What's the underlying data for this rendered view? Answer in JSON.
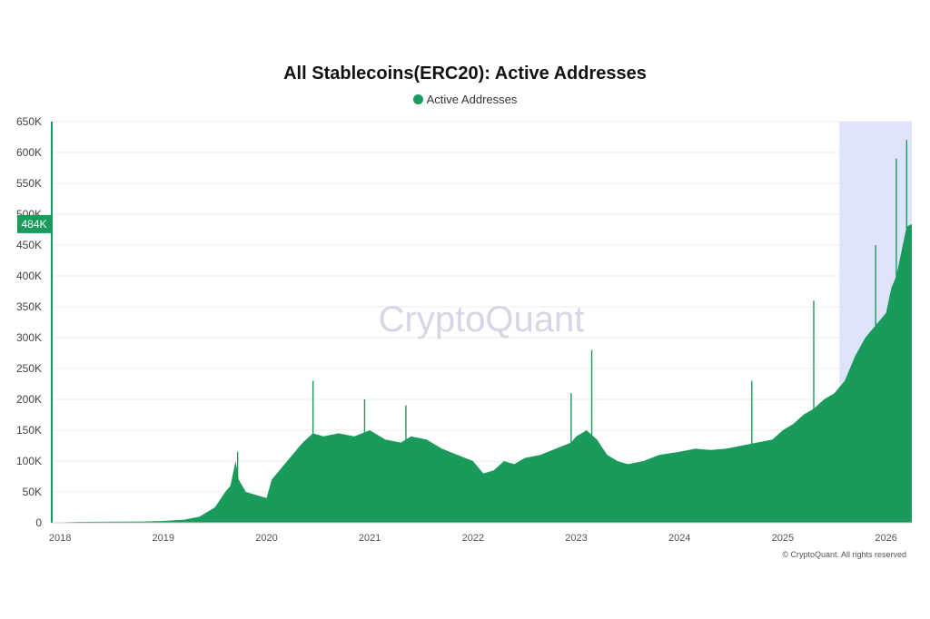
{
  "colors": {
    "series": "#1a9b5c",
    "highlight_band": "#dfe4fb",
    "badge": "#1a9b5c",
    "grid": "#eeeeee"
  },
  "watermark": "CryptoQuant",
  "copyright": "© CryptoQuant. All rights reserved",
  "current_value_badge": "484K",
  "chart_data": {
    "type": "area",
    "title": "All Stablecoins(ERC20): Active Addresses",
    "legend": [
      "Active Addresses"
    ],
    "legend_position": "top-center",
    "xlabel": "",
    "ylabel": "",
    "grid": true,
    "ylim": [
      0,
      650000
    ],
    "xlim": [
      2017.92,
      2026.25
    ],
    "y_ticks": [
      "0",
      "50K",
      "100K",
      "150K",
      "200K",
      "250K",
      "300K",
      "350K",
      "400K",
      "450K",
      "500K",
      "550K",
      "600K",
      "650K"
    ],
    "x_ticks": [
      "2018",
      "2019",
      "2020",
      "2021",
      "2022",
      "2023",
      "2024",
      "2025",
      "2026"
    ],
    "highlight_range": [
      2025.55,
      2026.25
    ],
    "series": [
      {
        "name": "Active Addresses",
        "x": [
          2017.92,
          2018.2,
          2018.5,
          2018.8,
          2019.0,
          2019.2,
          2019.35,
          2019.5,
          2019.6,
          2019.65,
          2019.7,
          2019.73,
          2019.8,
          2019.9,
          2020.0,
          2020.05,
          2020.2,
          2020.35,
          2020.45,
          2020.55,
          2020.7,
          2020.85,
          2021.0,
          2021.15,
          2021.3,
          2021.4,
          2021.55,
          2021.7,
          2021.85,
          2022.0,
          2022.1,
          2022.2,
          2022.3,
          2022.4,
          2022.5,
          2022.65,
          2022.8,
          2022.95,
          2023.0,
          2023.1,
          2023.2,
          2023.3,
          2023.4,
          2023.5,
          2023.65,
          2023.8,
          2024.0,
          2024.15,
          2024.3,
          2024.45,
          2024.6,
          2024.75,
          2024.9,
          2025.0,
          2025.1,
          2025.2,
          2025.3,
          2025.4,
          2025.5,
          2025.6,
          2025.7,
          2025.8,
          2025.9,
          2026.0,
          2026.05,
          2026.1,
          2026.15,
          2026.2,
          2026.25
        ],
        "values": [
          500,
          1500,
          1800,
          2000,
          3000,
          5000,
          10000,
          25000,
          50000,
          60000,
          100000,
          70000,
          50000,
          45000,
          40000,
          70000,
          100000,
          130000,
          145000,
          140000,
          145000,
          140000,
          150000,
          135000,
          130000,
          140000,
          135000,
          120000,
          110000,
          100000,
          80000,
          85000,
          100000,
          95000,
          105000,
          110000,
          120000,
          130000,
          140000,
          150000,
          135000,
          110000,
          100000,
          95000,
          100000,
          110000,
          115000,
          120000,
          118000,
          120000,
          125000,
          130000,
          135000,
          150000,
          160000,
          175000,
          185000,
          200000,
          210000,
          230000,
          270000,
          300000,
          320000,
          340000,
          380000,
          400000,
          440000,
          480000,
          484000
        ]
      }
    ],
    "peaks": {
      "x": [
        2019.72,
        2020.45,
        2020.95,
        2021.35,
        2022.95,
        2023.15,
        2024.7,
        2025.3,
        2025.9,
        2026.1,
        2026.2
      ],
      "values": [
        115000,
        230000,
        200000,
        190000,
        210000,
        280000,
        230000,
        360000,
        450000,
        590000,
        620000
      ]
    }
  }
}
